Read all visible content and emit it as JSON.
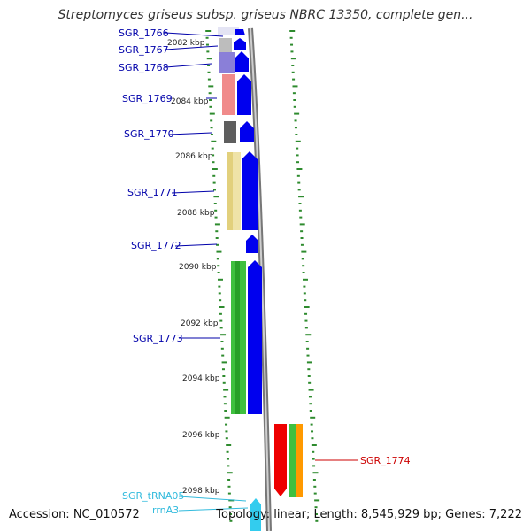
{
  "title": "Streptomyces griseus subsp. griseus NBRC 13350, complete gen...",
  "footer": {
    "accession": "Accession: NC_010572",
    "summary": "Topology: linear; Length: 8,545,929 bp; Genes: 7,222"
  },
  "scale": {
    "ticks": [
      "2082 kbp",
      "2084 kbp",
      "2086 kbp",
      "2088 kbp",
      "2090 kbp",
      "2092 kbp",
      "2094 kbp",
      "2096 kbp",
      "2098 kbp"
    ]
  },
  "colors": {
    "cds": "#0000ee",
    "gene_label": "#0000aa",
    "feature_red": "#cc0000",
    "trna": "#33ccee",
    "backbone": "#888888",
    "tick": "#2e8b2e"
  },
  "genes": [
    {
      "id": "SGR_1766",
      "label": "SGR_1766"
    },
    {
      "id": "SGR_1767",
      "label": "SGR_1767"
    },
    {
      "id": "SGR_1768",
      "label": "SGR_1768"
    },
    {
      "id": "SGR_1769",
      "label": "SGR_1769"
    },
    {
      "id": "SGR_1770",
      "label": "SGR_1770"
    },
    {
      "id": "SGR_1771",
      "label": "SGR_1771"
    },
    {
      "id": "SGR_1772",
      "label": "SGR_1772"
    },
    {
      "id": "SGR_1773",
      "label": "SGR_1773"
    },
    {
      "id": "SGR_1774",
      "label": "SGR_1774"
    },
    {
      "id": "SGR_tRNA05",
      "label": "SGR_tRNA05"
    },
    {
      "id": "rrnA3",
      "label": "rrnA3"
    }
  ]
}
